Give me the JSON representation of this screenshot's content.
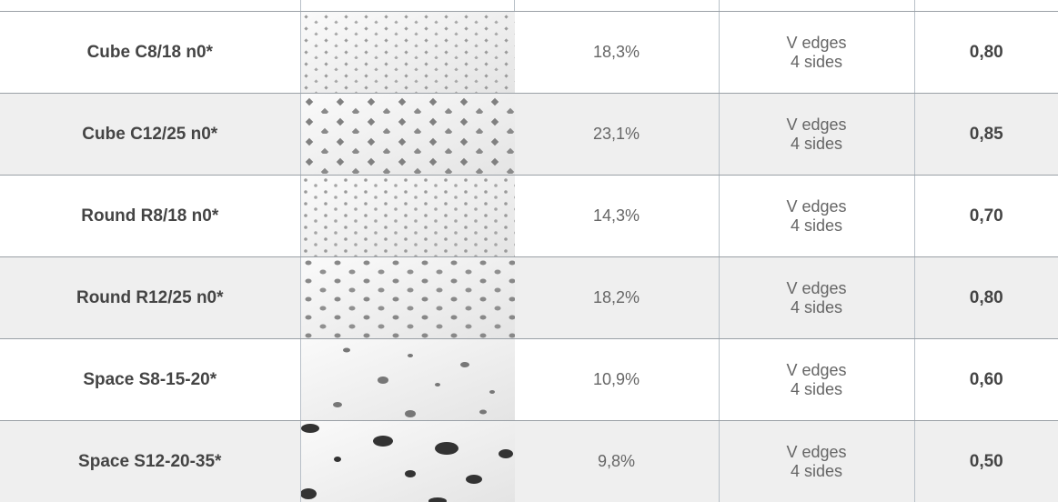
{
  "table": {
    "rows": [
      {
        "name": "Cube C8/18 n0*",
        "open_area": "18,3%",
        "edges": [
          "V edges",
          "4 sides"
        ],
        "value": "0,80"
      },
      {
        "name": "Cube C12/25 n0*",
        "open_area": "23,1%",
        "edges": [
          "V edges",
          "4 sides"
        ],
        "value": "0,85"
      },
      {
        "name": "Round R8/18 n0*",
        "open_area": "14,3%",
        "edges": [
          "V edges",
          "4 sides"
        ],
        "value": "0,70"
      },
      {
        "name": "Round R12/25 n0*",
        "open_area": "18,2%",
        "edges": [
          "V edges",
          "4 sides"
        ],
        "value": "0,80"
      },
      {
        "name": "Space S8-15-20*",
        "open_area": "10,9%",
        "edges": [
          "V edges",
          "4 sides"
        ],
        "value": "0,60"
      },
      {
        "name": "Space S12-20-35*",
        "open_area": "9,8%",
        "edges": [
          "V edges",
          "4 sides"
        ],
        "value": "0,50"
      }
    ]
  }
}
